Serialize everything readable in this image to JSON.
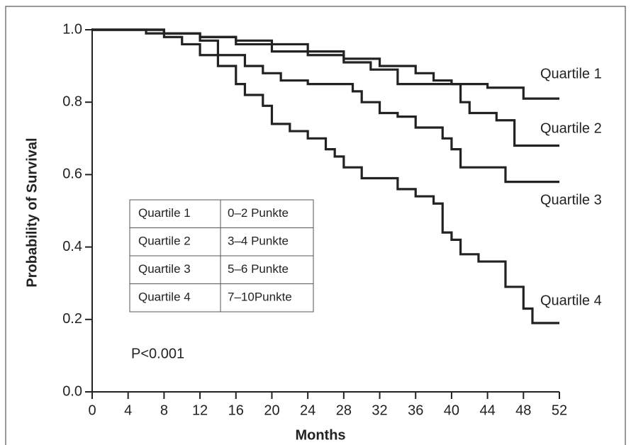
{
  "chart_data": {
    "type": "line",
    "step": true,
    "xlabel": "Months",
    "ylabel": "Probability of Survival",
    "annotation": "P<0.001",
    "xlim": [
      0,
      52
    ],
    "ylim": [
      0,
      1
    ],
    "xticks": [
      0,
      4,
      8,
      12,
      16,
      20,
      24,
      28,
      32,
      36,
      40,
      44,
      48,
      52
    ],
    "yticks": [
      {
        "value": 0,
        "label": "0.0"
      },
      0.2,
      0.4,
      0.6,
      0.8,
      {
        "value": 1,
        "label": "1.0"
      }
    ],
    "grid": false,
    "series": [
      {
        "name": "Quartile 1",
        "points": "0–2 Punkte",
        "color": "#222222",
        "x": [
          0,
          8,
          12,
          16,
          20,
          24,
          28,
          32,
          36,
          38,
          40,
          44,
          48,
          52
        ],
        "values": [
          1.0,
          0.99,
          0.98,
          0.97,
          0.96,
          0.94,
          0.92,
          0.9,
          0.88,
          0.86,
          0.85,
          0.84,
          0.81,
          0.81
        ]
      },
      {
        "name": "Quartile 2",
        "points": "3–4 Punkte",
        "color": "#222222",
        "x": [
          0,
          6,
          12,
          16,
          20,
          24,
          28,
          31,
          34,
          41,
          42,
          45,
          47,
          52
        ],
        "values": [
          1.0,
          0.99,
          0.98,
          0.96,
          0.94,
          0.93,
          0.91,
          0.89,
          0.85,
          0.8,
          0.77,
          0.75,
          0.68,
          0.68
        ]
      },
      {
        "name": "Quartile 3",
        "points": "5–6 Punkte",
        "color": "#222222",
        "x": [
          0,
          8,
          12,
          14,
          17,
          19,
          21,
          24,
          29,
          30,
          32,
          34,
          36,
          39,
          40,
          41,
          46,
          52
        ],
        "values": [
          1.0,
          0.99,
          0.97,
          0.93,
          0.9,
          0.88,
          0.86,
          0.85,
          0.83,
          0.8,
          0.77,
          0.76,
          0.73,
          0.7,
          0.67,
          0.62,
          0.58,
          0.58
        ]
      },
      {
        "name": "Quartile 4",
        "points": "7–10Punkte",
        "color": "#222222",
        "x": [
          0,
          8,
          10,
          12,
          14,
          16,
          17,
          19,
          20,
          22,
          24,
          26,
          27,
          28,
          30,
          34,
          36,
          38,
          39,
          40,
          41,
          43,
          46,
          48,
          49,
          52
        ],
        "values": [
          1.0,
          0.98,
          0.96,
          0.93,
          0.9,
          0.85,
          0.82,
          0.79,
          0.74,
          0.72,
          0.7,
          0.67,
          0.65,
          0.62,
          0.59,
          0.56,
          0.54,
          0.52,
          0.44,
          0.42,
          0.38,
          0.36,
          0.29,
          0.23,
          0.19,
          0.19
        ]
      }
    ]
  }
}
